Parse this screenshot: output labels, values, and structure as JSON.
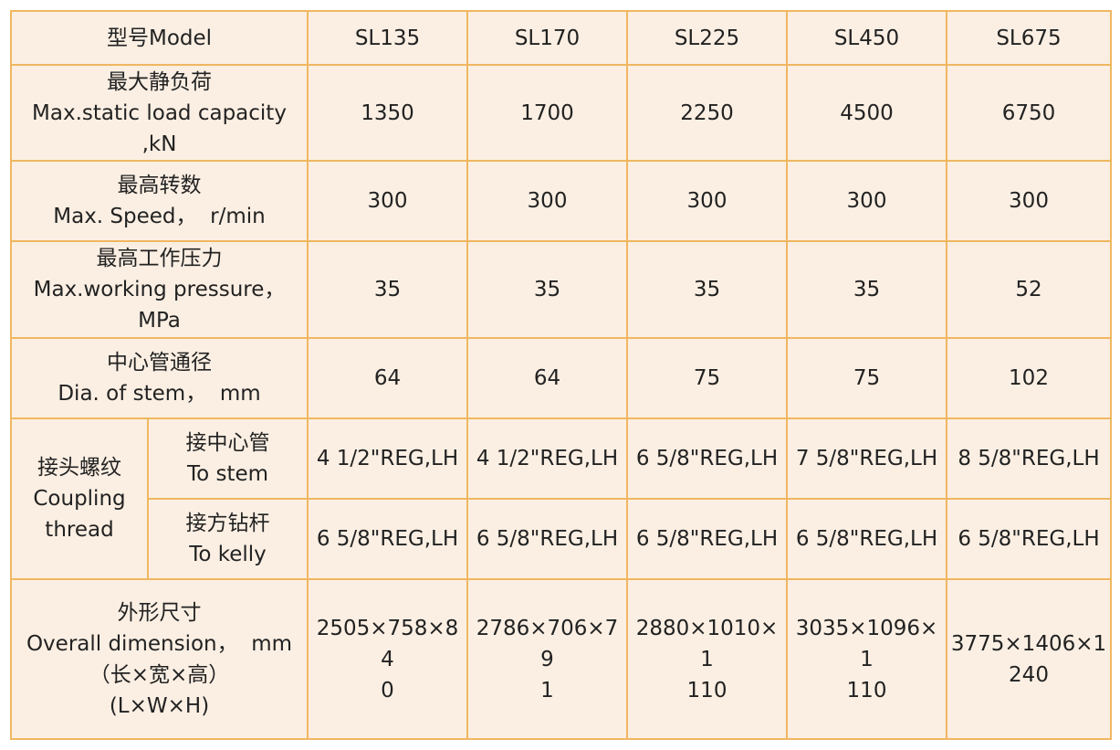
{
  "header": {
    "model_label": "型号Model",
    "models": [
      "SL135",
      "SL170",
      "SL225",
      "SL450",
      "SL675"
    ]
  },
  "rows": {
    "load": {
      "label_cn": "最大静负荷",
      "label_en": "Max.static load capacity",
      "label_unit": ",kN",
      "values": [
        "1350",
        "1700",
        "2250",
        "4500",
        "6750"
      ]
    },
    "speed": {
      "label_cn": "最高转数",
      "label_en": "Max. Speed，  r/min",
      "values": [
        "300",
        "300",
        "300",
        "300",
        "300"
      ]
    },
    "pressure": {
      "label_cn": "最高工作压力",
      "label_en": "Max.working pressure，",
      "label_unit": "MPa",
      "values": [
        "35",
        "35",
        "35",
        "35",
        "52"
      ]
    },
    "stem": {
      "label_cn": "中心管通径",
      "label_en": "Dia. of stem，  mm",
      "values": [
        "64",
        "64",
        "75",
        "75",
        "102"
      ]
    },
    "coupling": {
      "label_cn": "接头螺纹",
      "label_en1": "Coupling",
      "label_en2": "thread",
      "to_stem": {
        "label_cn": "接中心管",
        "label_en": "To stem",
        "values": [
          "4 1/2\"REG,LH",
          "4 1/2\"REG,LH",
          "6 5/8\"REG,LH",
          "7 5/8\"REG,LH",
          "8 5/8\"REG,LH"
        ]
      },
      "to_kelly": {
        "label_cn": "接方钻杆",
        "label_en": "To kelly",
        "values": [
          "6 5/8\"REG,LH",
          "6 5/8\"REG,LH",
          "6 5/8\"REG,LH",
          "6 5/8\"REG,LH",
          "6 5/8\"REG,LH"
        ]
      }
    },
    "dimension": {
      "label_cn": "外形尺寸",
      "label_en": "Overall dimension，  mm",
      "label_lwh_cn": "（长×宽×高）",
      "label_lwh_en": "(L×W×H)",
      "values": [
        [
          "2505×758×84",
          "0"
        ],
        [
          "2786×706×79",
          "1"
        ],
        [
          "2880×1010×1",
          "110"
        ],
        [
          "3035×1096×1",
          "110"
        ],
        [
          "3775×1406×1",
          "240"
        ]
      ]
    }
  }
}
